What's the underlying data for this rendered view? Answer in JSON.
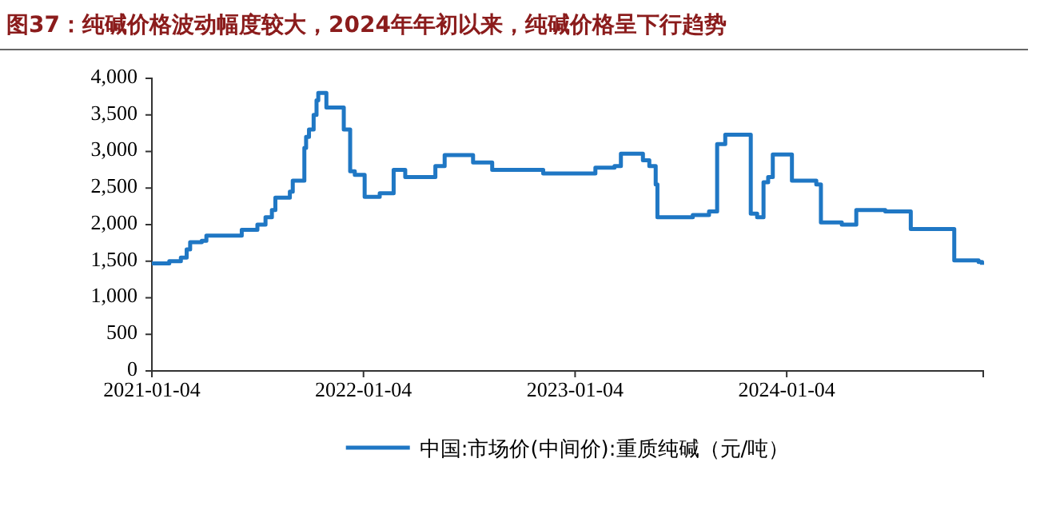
{
  "chart_data": {
    "type": "step",
    "title": "图37：纯碱价格波动幅度较大，2024年年初以来，纯碱价格呈下行趋势",
    "x": [
      "2021-01-04",
      "2021-02-03",
      "2021-02-23",
      "2021-03-05",
      "2021-03-11",
      "2021-03-31",
      "2021-04-08",
      "2021-06-08",
      "2021-07-05",
      "2021-07-19",
      "2021-07-30",
      "2021-08-05",
      "2021-08-30",
      "2021-09-04",
      "2021-09-24",
      "2021-09-27",
      "2021-10-02",
      "2021-10-10",
      "2021-10-15",
      "2021-10-18",
      "2021-11-01",
      "2021-12-01",
      "2021-12-12",
      "2021-12-20",
      "2022-01-06",
      "2022-02-01",
      "2022-02-25",
      "2022-03-17",
      "2022-05-08",
      "2022-05-24",
      "2022-07-12",
      "2022-08-14",
      "2022-11-10",
      "2023-02-08",
      "2023-03-13",
      "2023-03-24",
      "2023-05-01",
      "2023-05-12",
      "2023-05-23",
      "2023-05-26",
      "2023-07-26",
      "2023-08-23",
      "2023-09-06",
      "2023-09-20",
      "2023-11-03",
      "2023-11-14",
      "2023-11-25",
      "2023-12-03",
      "2023-12-11",
      "2024-01-13",
      "2024-02-24",
      "2024-03-03",
      "2024-04-08",
      "2024-05-03",
      "2024-06-22",
      "2024-08-05",
      "2024-10-19",
      "2024-11-30",
      "2024-12-06"
    ],
    "series": [
      {
        "name": "中国:市场价(中间价):重质纯碱（元/吨）",
        "color": "#1f77c4",
        "values": [
          1470,
          1500,
          1550,
          1660,
          1760,
          1780,
          1850,
          1930,
          2000,
          2100,
          2200,
          2370,
          2450,
          2600,
          3050,
          3200,
          3300,
          3500,
          3700,
          3800,
          3600,
          3300,
          2730,
          2680,
          2380,
          2430,
          2750,
          2650,
          2800,
          2950,
          2850,
          2750,
          2700,
          2780,
          2800,
          2970,
          2880,
          2800,
          2550,
          2100,
          2130,
          2180,
          3100,
          3230,
          2150,
          2100,
          2580,
          2650,
          2960,
          2600,
          2550,
          2030,
          2000,
          2200,
          2180,
          1940,
          1510,
          1490,
          1450
        ]
      }
    ],
    "xlim": [
      "2021-01-04",
      "2024-12-08"
    ],
    "xticks": [
      "2021-01-04",
      "2022-01-04",
      "2023-01-04",
      "2024-01-04"
    ],
    "ylim": [
      0,
      4000
    ],
    "yticks": [
      {
        "value": 0,
        "label": "0"
      },
      {
        "value": 500,
        "label": "500"
      },
      {
        "value": 1000,
        "label": "1,000"
      },
      {
        "value": 1500,
        "label": "1,500"
      },
      {
        "value": 2000,
        "label": "2,000"
      },
      {
        "value": 2500,
        "label": "2,500"
      },
      {
        "value": 3000,
        "label": "3,000"
      },
      {
        "value": 3500,
        "label": "3,500"
      },
      {
        "value": 4000,
        "label": "4,000"
      }
    ],
    "legend": "bottom",
    "grid": false
  }
}
